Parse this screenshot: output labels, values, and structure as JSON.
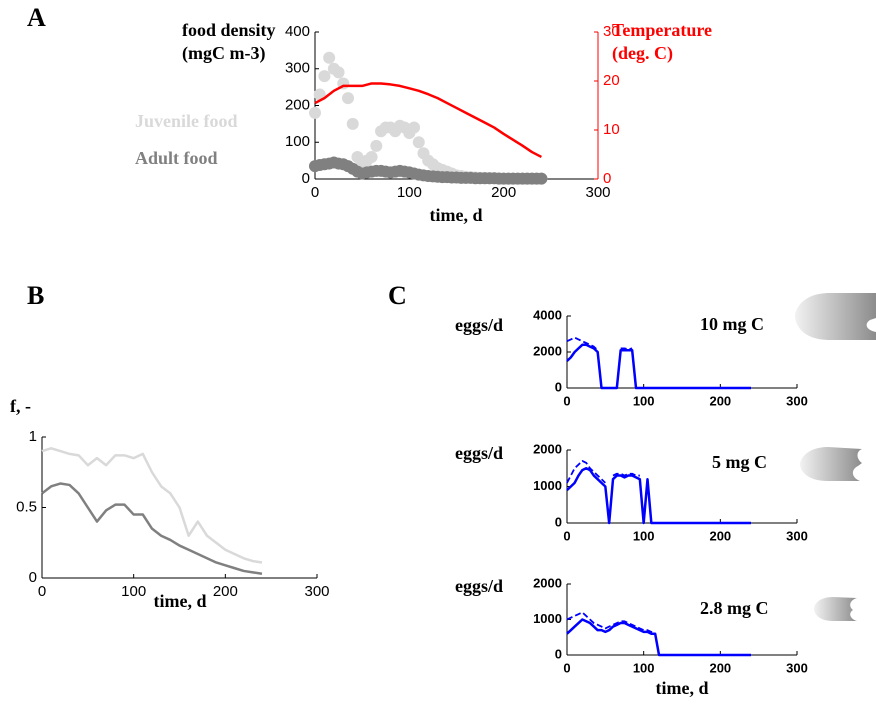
{
  "chart_data": [
    {
      "type": "scatter",
      "panel": "A",
      "ylabel": [
        "food density",
        "(mgC m-3)"
      ],
      "y2label": [
        "Temperature",
        "(deg. C)"
      ],
      "xlabel": "time, d",
      "legend": "left",
      "y2color": "#ff0000",
      "xlim": [
        0,
        300
      ],
      "xticks": [
        0,
        100,
        200,
        300
      ],
      "ylim": [
        0,
        400
      ],
      "yticks": [
        0,
        100,
        200,
        300,
        400
      ],
      "y2lim": [
        0,
        30
      ],
      "y2ticks": [
        0,
        10,
        20,
        30
      ],
      "x": [
        0,
        5,
        10,
        15,
        20,
        25,
        30,
        35,
        40,
        45,
        50,
        55,
        60,
        65,
        70,
        75,
        80,
        85,
        90,
        95,
        100,
        105,
        110,
        115,
        120,
        125,
        130,
        135,
        140,
        145,
        150,
        155,
        160,
        165,
        170,
        175,
        180,
        185,
        190,
        195,
        200,
        205,
        210,
        215,
        220,
        225,
        230,
        235,
        240
      ],
      "series": [
        {
          "name": "Juvenile food",
          "color": "#d9d9d9",
          "values": [
            180,
            230,
            280,
            330,
            300,
            290,
            260,
            220,
            150,
            60,
            40,
            50,
            60,
            90,
            130,
            140,
            140,
            130,
            145,
            140,
            125,
            140,
            100,
            70,
            50,
            40,
            30,
            25,
            20,
            15,
            10,
            8,
            6,
            5,
            4,
            3,
            3,
            2,
            2,
            2,
            1,
            1,
            1,
            1,
            1,
            1,
            1,
            1,
            1
          ]
        },
        {
          "name": "Adult food",
          "color": "#808080",
          "values": [
            35,
            38,
            40,
            42,
            45,
            42,
            40,
            35,
            28,
            20,
            15,
            18,
            20,
            22,
            22,
            20,
            18,
            20,
            22,
            20,
            18,
            15,
            12,
            10,
            8,
            7,
            6,
            5,
            5,
            4,
            4,
            3,
            3,
            3,
            2,
            2,
            2,
            2,
            2,
            1,
            1,
            1,
            1,
            1,
            1,
            1,
            1,
            1,
            1
          ]
        },
        {
          "type": "line",
          "axis": "y2",
          "color": "#ff0000",
          "x": [
            0,
            10,
            20,
            30,
            40,
            50,
            60,
            70,
            80,
            90,
            100,
            110,
            120,
            130,
            140,
            150,
            160,
            170,
            180,
            190,
            200,
            210,
            220,
            230,
            240
          ],
          "values": [
            15.5,
            16.5,
            18,
            19,
            19,
            19,
            19.5,
            19.5,
            19.3,
            19,
            18.5,
            18,
            17.3,
            16.5,
            15.5,
            14.5,
            13.5,
            12.5,
            11.5,
            10.5,
            9.2,
            8,
            6.8,
            5.5,
            4.5
          ]
        }
      ]
    },
    {
      "type": "line",
      "panel": "B",
      "ylabel": [
        "f, -"
      ],
      "xlabel": "time, d",
      "xlim": [
        0,
        300
      ],
      "xticks": [
        0,
        100,
        200,
        300
      ],
      "ylim": [
        0,
        1
      ],
      "yticks": [
        0,
        0.5,
        1
      ],
      "x": [
        0,
        10,
        20,
        30,
        40,
        50,
        60,
        70,
        80,
        90,
        100,
        110,
        120,
        130,
        140,
        150,
        160,
        170,
        180,
        190,
        200,
        210,
        220,
        230,
        240
      ],
      "series": [
        {
          "color": "#d9d9d9",
          "values": [
            0.9,
            0.92,
            0.9,
            0.88,
            0.87,
            0.8,
            0.85,
            0.8,
            0.87,
            0.87,
            0.85,
            0.88,
            0.75,
            0.65,
            0.6,
            0.5,
            0.3,
            0.4,
            0.3,
            0.25,
            0.2,
            0.17,
            0.14,
            0.12,
            0.11
          ]
        },
        {
          "color": "#808080",
          "values": [
            0.6,
            0.65,
            0.67,
            0.66,
            0.6,
            0.5,
            0.4,
            0.48,
            0.52,
            0.52,
            0.45,
            0.45,
            0.35,
            0.3,
            0.27,
            0.23,
            0.2,
            0.17,
            0.14,
            0.11,
            0.09,
            0.07,
            0.05,
            0.04,
            0.03
          ]
        }
      ]
    },
    {
      "type": "line",
      "panel": "C",
      "ylabel": [
        "eggs/d"
      ],
      "annotation": "10 mg C",
      "xlim": [
        0,
        300
      ],
      "xticks": [
        0,
        100,
        200,
        300
      ],
      "ylim": [
        0,
        4000
      ],
      "yticks": [
        0,
        2000,
        4000
      ],
      "x": [
        0,
        5,
        10,
        15,
        20,
        25,
        30,
        35,
        40,
        45,
        50,
        55,
        60,
        65,
        70,
        75,
        80,
        85,
        90,
        95,
        100,
        105,
        110,
        115,
        120,
        125,
        130,
        135,
        140,
        145,
        150,
        155,
        160,
        165,
        170,
        175,
        180,
        185,
        190,
        195,
        200,
        205,
        210,
        215,
        220,
        225,
        230,
        235,
        240
      ],
      "series": [
        {
          "color": "#0000ff",
          "dash": true,
          "values": [
            2600,
            2700,
            2800,
            2700,
            2600,
            2500,
            2400,
            2300,
            2100,
            null,
            null,
            null,
            null,
            null,
            2200,
            2200,
            2150,
            2200,
            null,
            null,
            null,
            null,
            null,
            null,
            null,
            null,
            null,
            null,
            null,
            null,
            null,
            null,
            null,
            null,
            null,
            null,
            null,
            null,
            null,
            null,
            null,
            null,
            null,
            null,
            null,
            null,
            null,
            null,
            null
          ]
        },
        {
          "color": "#0000ff",
          "values": [
            1500,
            1700,
            2000,
            2200,
            2400,
            2400,
            2300,
            2200,
            2000,
            0,
            0,
            0,
            0,
            0,
            2100,
            2100,
            2100,
            2100,
            0,
            0,
            0,
            0,
            0,
            0,
            0,
            0,
            0,
            0,
            0,
            0,
            0,
            0,
            0,
            0,
            0,
            0,
            0,
            0,
            0,
            0,
            0,
            0,
            0,
            0,
            0,
            0,
            0,
            0,
            0
          ]
        }
      ]
    },
    {
      "type": "line",
      "ylabel": [
        "eggs/d"
      ],
      "annotation": "5 mg C",
      "xlim": [
        0,
        300
      ],
      "xticks": [
        0,
        100,
        200,
        300
      ],
      "ylim": [
        0,
        2000
      ],
      "yticks": [
        0,
        1000,
        2000
      ],
      "x": [
        0,
        5,
        10,
        15,
        20,
        25,
        30,
        35,
        40,
        45,
        50,
        55,
        60,
        65,
        70,
        75,
        80,
        85,
        90,
        95,
        100,
        105,
        110,
        115,
        120,
        125,
        130,
        135,
        140,
        145,
        150,
        155,
        160,
        165,
        170,
        175,
        180,
        185,
        190,
        195,
        200,
        205,
        210,
        215,
        220,
        225,
        230,
        235,
        240
      ],
      "series": [
        {
          "color": "#0000ff",
          "dash": true,
          "values": [
            1100,
            1300,
            1500,
            1600,
            1700,
            1650,
            1500,
            1400,
            1300,
            1200,
            1100,
            null,
            1300,
            1350,
            1350,
            1300,
            1350,
            1350,
            1300,
            1300,
            null,
            1500,
            null,
            null,
            null,
            null,
            null,
            null,
            null,
            null,
            null,
            null,
            null,
            null,
            null,
            null,
            null,
            null,
            null,
            null,
            null,
            null,
            null,
            null,
            null,
            null,
            null,
            null,
            null
          ]
        },
        {
          "color": "#0000ff",
          "values": [
            900,
            1000,
            1100,
            1300,
            1450,
            1500,
            1450,
            1300,
            1200,
            1100,
            1000,
            0,
            1200,
            1300,
            1300,
            1250,
            1300,
            1300,
            1250,
            1200,
            0,
            1200,
            0,
            0,
            0,
            0,
            0,
            0,
            0,
            0,
            0,
            0,
            0,
            0,
            0,
            0,
            0,
            0,
            0,
            0,
            0,
            0,
            0,
            0,
            0,
            0,
            0,
            0,
            0
          ]
        }
      ]
    },
    {
      "type": "line",
      "ylabel": [
        "eggs/d"
      ],
      "annotation": "2.8 mg C",
      "xlabel": "time, d",
      "xlim": [
        0,
        300
      ],
      "xticks": [
        0,
        100,
        200,
        300
      ],
      "ylim": [
        0,
        2000
      ],
      "yticks": [
        0,
        1000,
        2000
      ],
      "x": [
        0,
        5,
        10,
        15,
        20,
        25,
        30,
        35,
        40,
        45,
        50,
        55,
        60,
        65,
        70,
        75,
        80,
        85,
        90,
        95,
        100,
        105,
        110,
        115,
        120,
        125,
        130,
        135,
        140,
        145,
        150,
        155,
        160,
        165,
        170,
        175,
        180,
        185,
        190,
        195,
        200,
        205,
        210,
        215,
        220,
        225,
        230,
        235,
        240
      ],
      "series": [
        {
          "color": "#0000ff",
          "dash": true,
          "values": [
            1000,
            1050,
            1100,
            1150,
            1200,
            1100,
            1000,
            900,
            850,
            800,
            750,
            800,
            850,
            900,
            950,
            950,
            900,
            850,
            800,
            750,
            700,
            700,
            650,
            650,
            null,
            null,
            null,
            null,
            null,
            null,
            null,
            null,
            null,
            null,
            null,
            null,
            null,
            null,
            null,
            null,
            null,
            null,
            null,
            null,
            null,
            null,
            null,
            null,
            null
          ]
        },
        {
          "color": "#0000ff",
          "values": [
            600,
            700,
            800,
            900,
            1000,
            950,
            900,
            800,
            700,
            700,
            650,
            700,
            800,
            850,
            900,
            900,
            850,
            800,
            750,
            700,
            650,
            650,
            600,
            600,
            0,
            0,
            0,
            0,
            0,
            0,
            0,
            0,
            0,
            0,
            0,
            0,
            0,
            0,
            0,
            0,
            0,
            0,
            0,
            0,
            0,
            0,
            0,
            0,
            0
          ]
        }
      ]
    }
  ]
}
